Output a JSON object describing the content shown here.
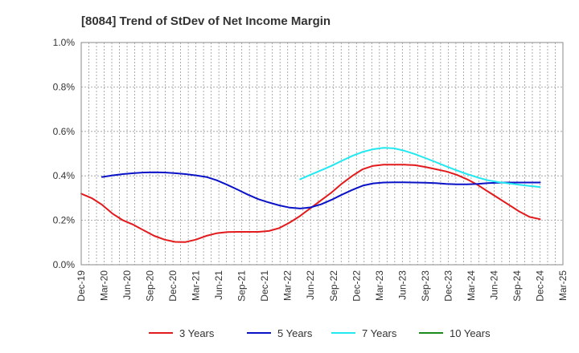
{
  "chart_data": {
    "type": "line",
    "title": "[8084]  Trend of StDev of Net Income Margin",
    "xlabel": "",
    "ylabel": "",
    "ylim": [
      0,
      1.0
    ],
    "y_ticks": [
      "0.0%",
      "0.2%",
      "0.4%",
      "0.6%",
      "0.8%",
      "1.0%"
    ],
    "x_ticks": [
      "Dec-19",
      "Mar-20",
      "Jun-20",
      "Sep-20",
      "Dec-20",
      "Mar-21",
      "Jun-21",
      "Sep-21",
      "Dec-21",
      "Mar-22",
      "Jun-22",
      "Sep-22",
      "Dec-22",
      "Mar-23",
      "Jun-23",
      "Sep-23",
      "Dec-23",
      "Mar-24",
      "Jun-24",
      "Sep-24",
      "Dec-24",
      "Mar-25"
    ],
    "grid": true,
    "legend_position": "bottom",
    "series": [
      {
        "name": "3 Years",
        "color": "#e31a1c",
        "values": [
          0.32,
          0.3,
          0.27,
          0.23,
          0.2,
          0.18,
          0.155,
          0.13,
          0.113,
          0.103,
          0.102,
          0.113,
          0.13,
          0.142,
          0.147,
          0.148,
          0.148,
          0.148,
          0.152,
          0.165,
          0.19,
          0.22,
          0.255,
          0.29,
          0.325,
          0.365,
          0.4,
          0.43,
          0.445,
          0.45,
          0.45,
          0.45,
          0.448,
          0.44,
          0.43,
          0.42,
          0.405,
          0.385,
          0.36,
          0.33,
          0.3,
          0.27,
          0.24,
          0.215,
          0.205
        ]
      },
      {
        "name": "5 Years",
        "color": "#0a12c8",
        "values": [
          null,
          null,
          0.395,
          0.402,
          0.408,
          0.412,
          0.415,
          0.416,
          0.415,
          0.412,
          0.408,
          0.402,
          0.395,
          0.38,
          0.36,
          0.338,
          0.315,
          0.295,
          0.28,
          0.267,
          0.257,
          0.253,
          0.258,
          0.272,
          0.292,
          0.315,
          0.337,
          0.356,
          0.366,
          0.37,
          0.371,
          0.371,
          0.37,
          0.369,
          0.367,
          0.364,
          0.362,
          0.362,
          0.364,
          0.367,
          0.369,
          0.37,
          0.37,
          0.37,
          0.37
        ]
      },
      {
        "name": "7 Years",
        "color": "#22e8f0",
        "values": [
          null,
          null,
          null,
          null,
          null,
          null,
          null,
          null,
          null,
          null,
          null,
          null,
          null,
          null,
          null,
          null,
          null,
          null,
          null,
          null,
          null,
          0.385,
          0.405,
          0.425,
          0.445,
          0.468,
          0.49,
          0.508,
          0.52,
          0.526,
          0.524,
          0.513,
          0.498,
          0.48,
          0.462,
          0.443,
          0.425,
          0.408,
          0.393,
          0.38,
          0.372,
          0.366,
          0.36,
          0.355,
          0.35
        ]
      },
      {
        "name": "10 Years",
        "color": "#1a8a1a",
        "values": []
      }
    ]
  }
}
